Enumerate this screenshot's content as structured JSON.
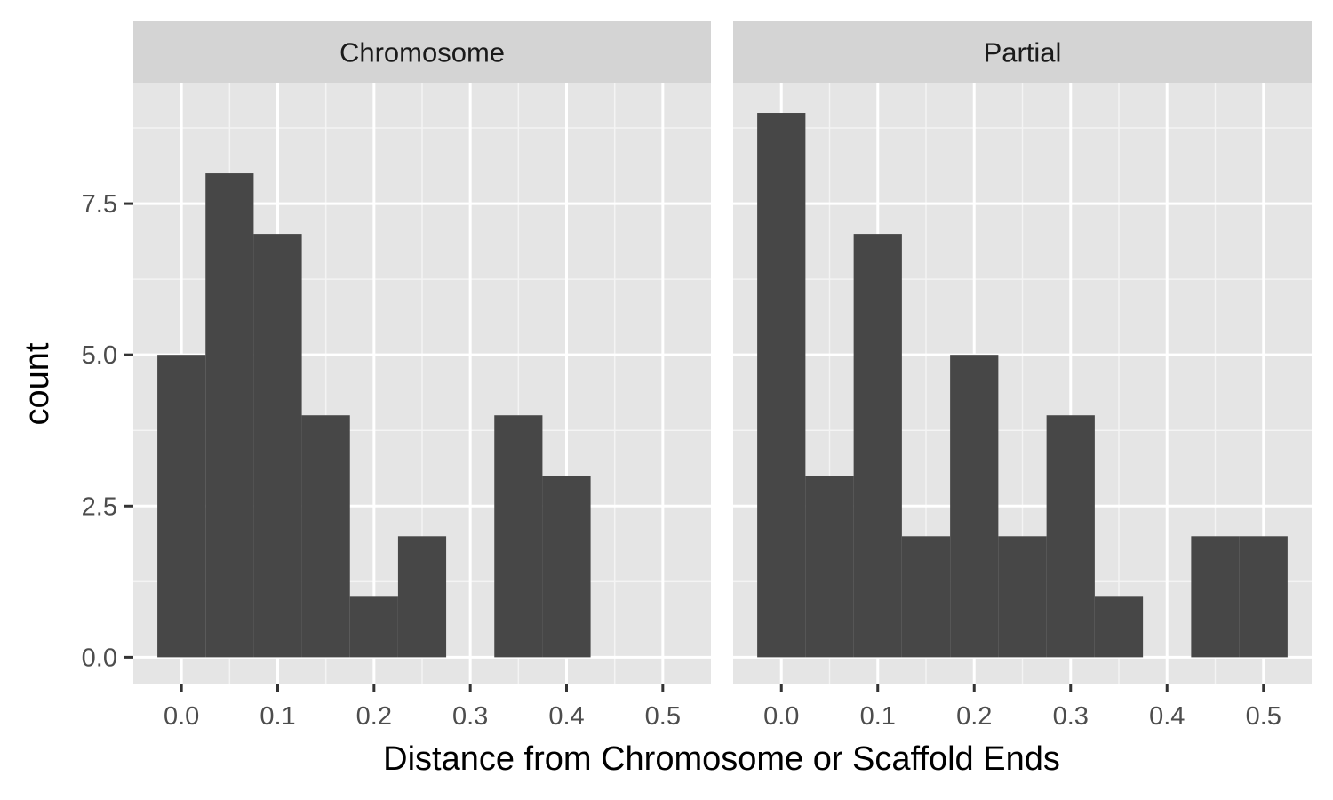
{
  "chart_data": {
    "type": "bar",
    "xlabel": "Distance from Chromosome or Scaffold Ends",
    "ylabel": "count",
    "x_ticks": [
      "0.0",
      "0.1",
      "0.2",
      "0.3",
      "0.4",
      "0.5"
    ],
    "x_tick_values": [
      0.0,
      0.1,
      0.2,
      0.3,
      0.4,
      0.5
    ],
    "y_ticks": [
      "0.0",
      "2.5",
      "5.0",
      "7.5"
    ],
    "y_tick_values": [
      0.0,
      2.5,
      5.0,
      7.5
    ],
    "xlim": [
      -0.05,
      0.55
    ],
    "ylim": [
      -0.45,
      9.5
    ],
    "bin_width": 0.05,
    "grid": true,
    "facets": [
      {
        "label": "Chromosome",
        "bins": [
          {
            "x": 0.0,
            "count": 5
          },
          {
            "x": 0.05,
            "count": 8
          },
          {
            "x": 0.1,
            "count": 7
          },
          {
            "x": 0.15,
            "count": 4
          },
          {
            "x": 0.2,
            "count": 1
          },
          {
            "x": 0.25,
            "count": 2
          },
          {
            "x": 0.35,
            "count": 4
          },
          {
            "x": 0.4,
            "count": 3
          }
        ]
      },
      {
        "label": "Partial",
        "bins": [
          {
            "x": 0.0,
            "count": 9
          },
          {
            "x": 0.05,
            "count": 3
          },
          {
            "x": 0.1,
            "count": 7
          },
          {
            "x": 0.15,
            "count": 2
          },
          {
            "x": 0.2,
            "count": 5
          },
          {
            "x": 0.25,
            "count": 2
          },
          {
            "x": 0.3,
            "count": 4
          },
          {
            "x": 0.35,
            "count": 1
          },
          {
            "x": 0.45,
            "count": 2
          },
          {
            "x": 0.5,
            "count": 2
          }
        ]
      }
    ]
  },
  "colors": {
    "bar": "#474747",
    "panel": "#e5e5e5",
    "strip": "#d4d4d4"
  }
}
